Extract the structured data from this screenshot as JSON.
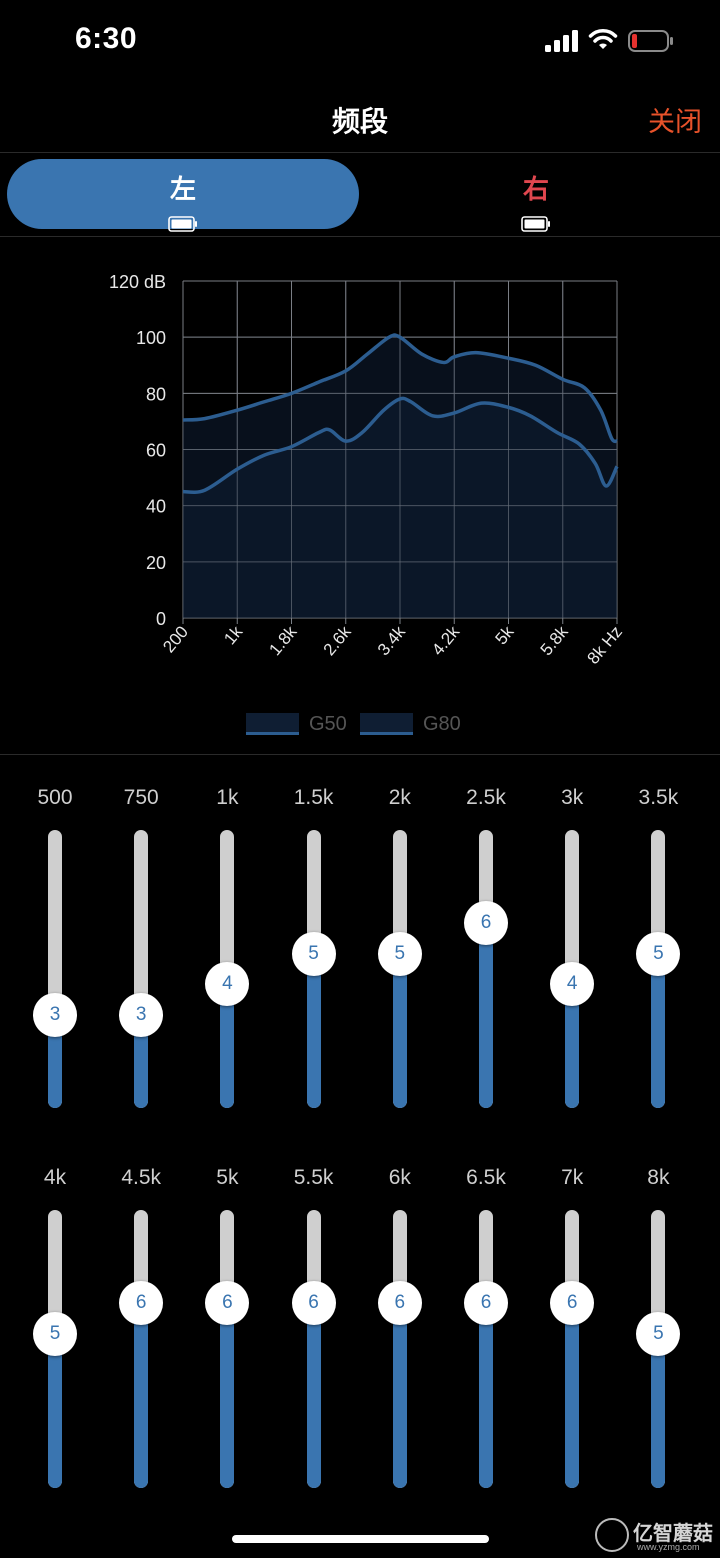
{
  "status_bar": {
    "time": "6:30"
  },
  "header": {
    "title": "频段",
    "close_label": "关闭"
  },
  "tabs": [
    {
      "label": "左",
      "active": true
    },
    {
      "label": "右",
      "active": false
    }
  ],
  "colors": {
    "accent": "#3a75b0",
    "close": "#e8522a",
    "right_tab": "#e0474f",
    "battery_low": "#e5322f",
    "series_fill": "#0f1e33",
    "series_line": "#2c5d90",
    "grid": "#7a7f86"
  },
  "chart_data": {
    "type": "line",
    "ylabel": "dB",
    "xlabel": "Hz",
    "ylim": [
      0,
      120
    ],
    "yticks": [
      0,
      20,
      40,
      60,
      80,
      100,
      120
    ],
    "ytick_labels": [
      "0",
      "20",
      "40",
      "60",
      "80",
      "100",
      "120 dB"
    ],
    "x_categories": [
      "200",
      "1k",
      "1.8k",
      "2.6k",
      "3.4k",
      "4.2k",
      "5k",
      "5.8k",
      "8k Hz"
    ],
    "grid": true,
    "legend_position": "bottom",
    "series": [
      {
        "name": "G50",
        "points": [
          [
            0,
            45
          ],
          [
            0.4,
            45.5
          ],
          [
            1,
            53
          ],
          [
            1.5,
            58
          ],
          [
            2,
            61
          ],
          [
            2.5,
            66
          ],
          [
            2.7,
            67
          ],
          [
            3,
            63
          ],
          [
            3.3,
            66
          ],
          [
            3.7,
            74
          ],
          [
            4,
            78
          ],
          [
            4.2,
            77
          ],
          [
            4.6,
            72
          ],
          [
            5,
            73
          ],
          [
            5.5,
            76.5
          ],
          [
            6,
            75
          ],
          [
            6.4,
            72
          ],
          [
            6.9,
            66
          ],
          [
            7.3,
            62
          ],
          [
            7.6,
            55
          ],
          [
            7.8,
            47
          ],
          [
            8,
            54
          ]
        ]
      },
      {
        "name": "G80",
        "points": [
          [
            0,
            70.5
          ],
          [
            0.4,
            71
          ],
          [
            1,
            74
          ],
          [
            1.5,
            77
          ],
          [
            2,
            80
          ],
          [
            2.5,
            84
          ],
          [
            3,
            88
          ],
          [
            3.4,
            94
          ],
          [
            3.8,
            100
          ],
          [
            4,
            100
          ],
          [
            4.4,
            94
          ],
          [
            4.8,
            91
          ],
          [
            5,
            93
          ],
          [
            5.4,
            94.5
          ],
          [
            6,
            92.5
          ],
          [
            6.5,
            90
          ],
          [
            7,
            85
          ],
          [
            7.4,
            82
          ],
          [
            7.7,
            74
          ],
          [
            7.9,
            64
          ],
          [
            8,
            63
          ]
        ]
      }
    ]
  },
  "bands_row1": [
    {
      "freq": "500",
      "value": 3
    },
    {
      "freq": "750",
      "value": 3
    },
    {
      "freq": "1k",
      "value": 4
    },
    {
      "freq": "1.5k",
      "value": 5
    },
    {
      "freq": "2k",
      "value": 5
    },
    {
      "freq": "2.5k",
      "value": 6
    },
    {
      "freq": "3k",
      "value": 4
    },
    {
      "freq": "3.5k",
      "value": 5
    }
  ],
  "bands_row2": [
    {
      "freq": "4k",
      "value": 5
    },
    {
      "freq": "4.5k",
      "value": 6
    },
    {
      "freq": "5k",
      "value": 6
    },
    {
      "freq": "5.5k",
      "value": 6
    },
    {
      "freq": "6k",
      "value": 6
    },
    {
      "freq": "6.5k",
      "value": 6
    },
    {
      "freq": "7k",
      "value": 6
    },
    {
      "freq": "8k",
      "value": 5
    }
  ],
  "slider_max": 9,
  "watermark": {
    "name": "亿智蘑菇",
    "url": "www.yzmg.com"
  }
}
